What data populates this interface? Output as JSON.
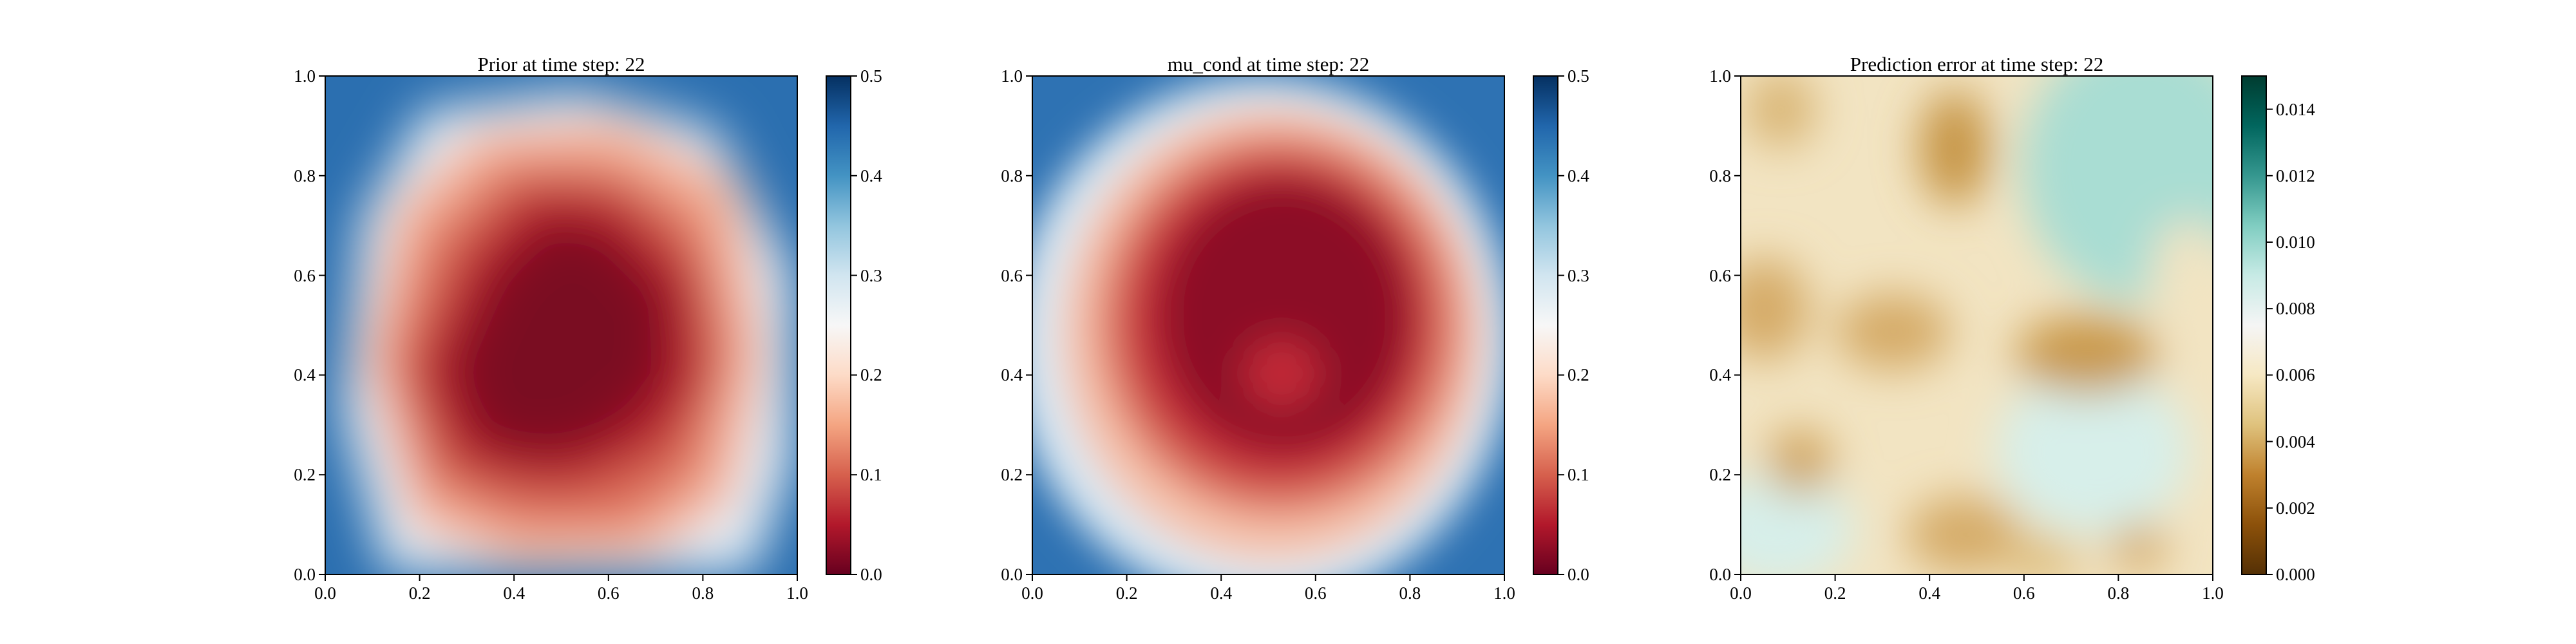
{
  "chart_data": [
    {
      "type": "heatmap",
      "title": "Prior at time step: 22",
      "xlabel": "",
      "ylabel": "",
      "xlim": [
        0.0,
        1.0
      ],
      "ylim": [
        0.0,
        1.0
      ],
      "x_ticks": [
        "0.0",
        "0.2",
        "0.4",
        "0.6",
        "0.8",
        "1.0"
      ],
      "y_ticks": [
        "0.0",
        "0.2",
        "0.4",
        "0.6",
        "0.8",
        "1.0"
      ],
      "colormap": "RdBu",
      "color_low": "#67001f",
      "color_high": "#053061",
      "vmin": 0.0,
      "vmax": 0.5,
      "colorbar_ticks": [
        "0.0",
        "0.1",
        "0.2",
        "0.3",
        "0.4",
        "0.5"
      ],
      "description_field": "irregular low-value region centred near (0.5, 0.55), high values in corners"
    },
    {
      "type": "heatmap",
      "title": "mu_cond at time step: 22",
      "xlabel": "",
      "ylabel": "",
      "xlim": [
        0.0,
        1.0
      ],
      "ylim": [
        0.0,
        1.0
      ],
      "x_ticks": [
        "0.0",
        "0.2",
        "0.4",
        "0.6",
        "0.8",
        "1.0"
      ],
      "y_ticks": [
        "0.0",
        "0.2",
        "0.4",
        "0.6",
        "0.8",
        "1.0"
      ],
      "colormap": "RdBu",
      "color_low": "#67001f",
      "color_high": "#053061",
      "vmin": 0.0,
      "vmax": 0.5,
      "colorbar_ticks": [
        "0.0",
        "0.1",
        "0.2",
        "0.3",
        "0.4",
        "0.5"
      ],
      "description_field": "smooth circular low-value region centred near (0.55, 0.55)"
    },
    {
      "type": "heatmap",
      "title": "Prediction error at time step: 22",
      "xlabel": "",
      "ylabel": "",
      "xlim": [
        0.0,
        1.0
      ],
      "ylim": [
        0.0,
        1.0
      ],
      "x_ticks": [
        "0.0",
        "0.2",
        "0.4",
        "0.6",
        "0.8",
        "1.0"
      ],
      "y_ticks": [
        "0.0",
        "0.2",
        "0.4",
        "0.6",
        "0.8",
        "1.0"
      ],
      "colormap": "BrBG",
      "color_low": "#543005",
      "color_high": "#003c30",
      "vmin": 0.0,
      "vmax": 0.015,
      "colorbar_ticks": [
        "0.000",
        "0.002",
        "0.004",
        "0.006",
        "0.008",
        "0.010",
        "0.012",
        "0.014"
      ],
      "description_field": "patchy field mostly 0.005-0.009, teal region upper-right"
    }
  ]
}
